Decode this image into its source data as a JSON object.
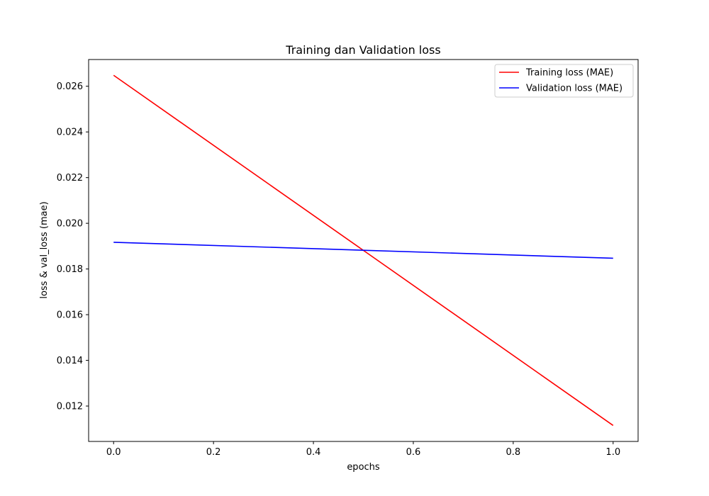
{
  "chart_data": {
    "type": "line",
    "title": "Training dan Validation loss",
    "xlabel": "epochs",
    "ylabel": "loss & val_loss (mae)",
    "xlim": [
      -0.05,
      1.05
    ],
    "ylim": [
      0.01045,
      0.02717
    ],
    "xticks": [
      0.0,
      0.2,
      0.4,
      0.6,
      0.8,
      1.0
    ],
    "xtick_labels": [
      "0.0",
      "0.2",
      "0.4",
      "0.6",
      "0.8",
      "1.0"
    ],
    "yticks": [
      0.012,
      0.014,
      0.016,
      0.018,
      0.02,
      0.022,
      0.024,
      0.026
    ],
    "ytick_labels": [
      "0.012",
      "0.014",
      "0.016",
      "0.018",
      "0.020",
      "0.022",
      "0.024",
      "0.026"
    ],
    "grid": false,
    "legend_position": "top-right",
    "series": [
      {
        "name": "Training loss (MAE)",
        "color": "#ff0000",
        "x": [
          0,
          1
        ],
        "y": [
          0.02648,
          0.01115
        ]
      },
      {
        "name": "Validation loss (MAE)",
        "color": "#0000ff",
        "x": [
          0,
          1
        ],
        "y": [
          0.01917,
          0.01847
        ]
      }
    ]
  }
}
